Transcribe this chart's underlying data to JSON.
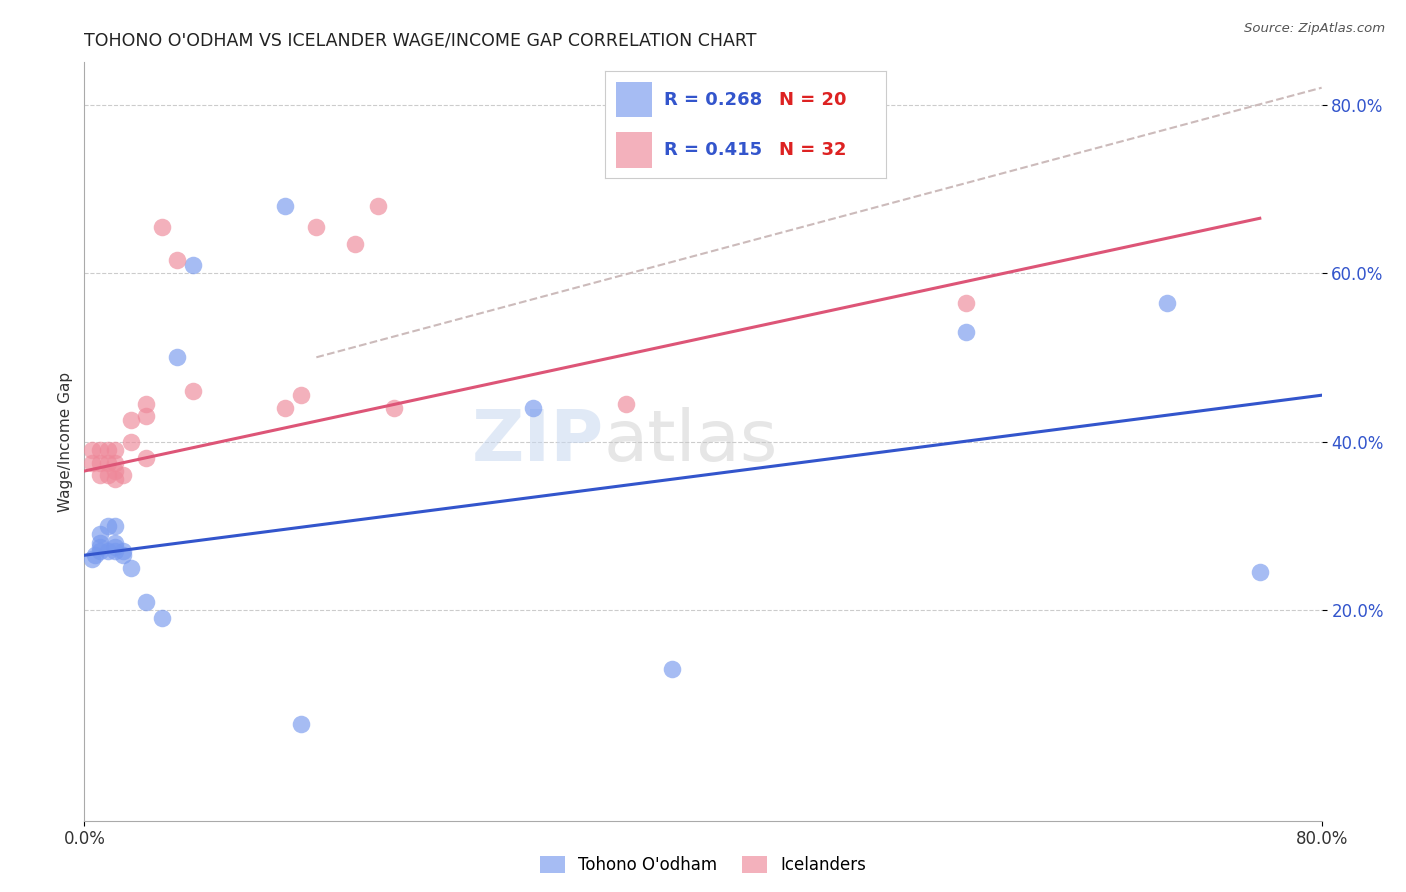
{
  "title": "TOHONO O'ODHAM VS ICELANDER WAGE/INCOME GAP CORRELATION CHART",
  "source": "Source: ZipAtlas.com",
  "ylabel": "Wage/Income Gap",
  "watermark_zip": "ZIP",
  "watermark_atlas": "atlas",
  "xlim": [
    0.0,
    0.8
  ],
  "ylim": [
    -0.05,
    0.85
  ],
  "yticks": [
    0.2,
    0.4,
    0.6,
    0.8
  ],
  "ytick_labels": [
    "20.0%",
    "40.0%",
    "60.0%",
    "80.0%"
  ],
  "xtick_labels": [
    "0.0%",
    "80.0%"
  ],
  "xtick_vals": [
    0.0,
    0.8
  ],
  "grid_color": "#cccccc",
  "background_color": "#ffffff",
  "blue_dot_color": "#7799ee",
  "pink_dot_color": "#ee8899",
  "blue_line_color": "#3355cc",
  "pink_line_color": "#dd5577",
  "dashed_line_color": "#ccbbbb",
  "legend_text_color": "#3355cc",
  "legend_R_color": "#3355cc",
  "legend_N_color": "#dd2222",
  "tohono_x": [
    0.005,
    0.007,
    0.01,
    0.01,
    0.01,
    0.01,
    0.015,
    0.015,
    0.02,
    0.02,
    0.02,
    0.02,
    0.025,
    0.025,
    0.03,
    0.04,
    0.05,
    0.06,
    0.07,
    0.13,
    0.14,
    0.29,
    0.38,
    0.57,
    0.7,
    0.76
  ],
  "tohono_y": [
    0.26,
    0.265,
    0.27,
    0.275,
    0.28,
    0.29,
    0.27,
    0.3,
    0.27,
    0.275,
    0.28,
    0.3,
    0.27,
    0.265,
    0.25,
    0.21,
    0.19,
    0.5,
    0.61,
    0.68,
    0.065,
    0.44,
    0.13,
    0.53,
    0.565,
    0.245
  ],
  "icelander_x": [
    0.005,
    0.005,
    0.01,
    0.01,
    0.01,
    0.015,
    0.015,
    0.015,
    0.02,
    0.02,
    0.02,
    0.02,
    0.025,
    0.03,
    0.03,
    0.04,
    0.04,
    0.04,
    0.05,
    0.06,
    0.07,
    0.13,
    0.14,
    0.15,
    0.175,
    0.19,
    0.2,
    0.35,
    0.57
  ],
  "icelander_y": [
    0.375,
    0.39,
    0.36,
    0.375,
    0.39,
    0.36,
    0.375,
    0.39,
    0.355,
    0.365,
    0.375,
    0.39,
    0.36,
    0.4,
    0.425,
    0.43,
    0.445,
    0.38,
    0.655,
    0.615,
    0.46,
    0.44,
    0.455,
    0.655,
    0.635,
    0.68,
    0.44,
    0.445,
    0.565
  ],
  "blue_line_x": [
    0.0,
    0.8
  ],
  "blue_line_y": [
    0.265,
    0.455
  ],
  "pink_line_x": [
    0.0,
    0.76
  ],
  "pink_line_y": [
    0.365,
    0.665
  ],
  "dashed_line_x": [
    0.15,
    0.8
  ],
  "dashed_line_y": [
    0.5,
    0.82
  ]
}
